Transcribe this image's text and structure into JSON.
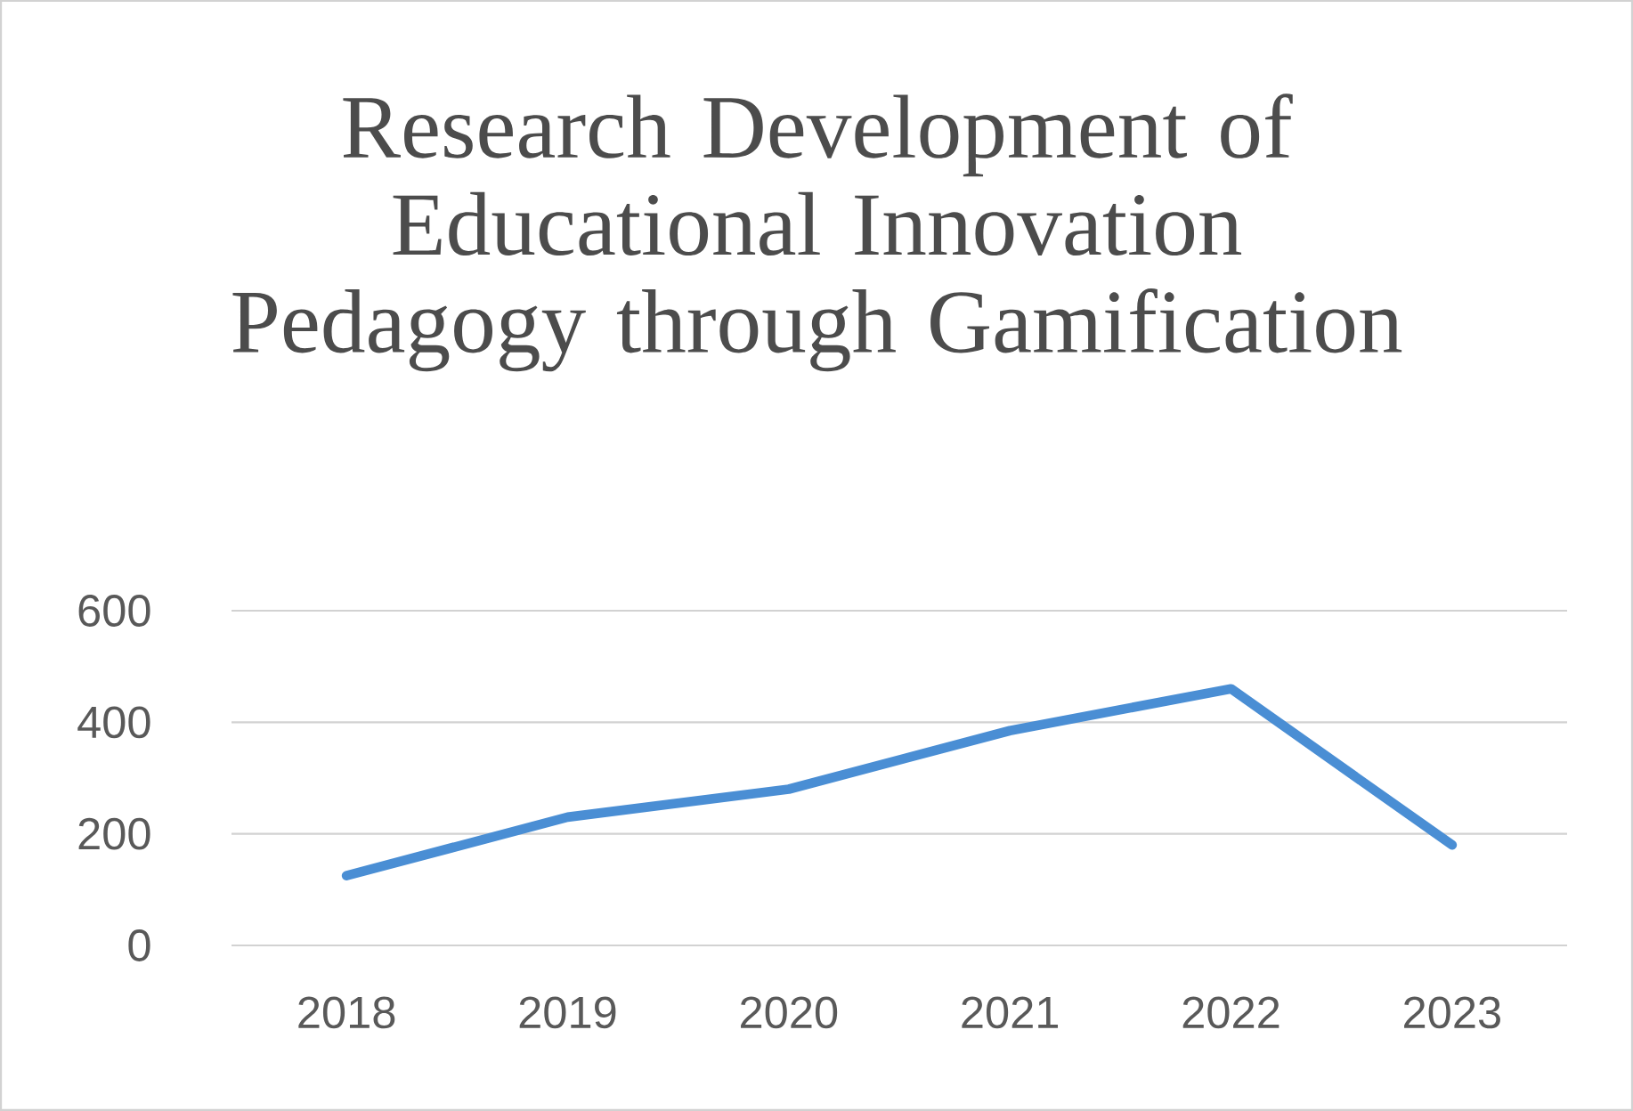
{
  "chart_data": {
    "type": "line",
    "title": "Research Development of Educational Innovation Pedagogy through Gamification",
    "categories": [
      "2018",
      "2019",
      "2020",
      "2021",
      "2022",
      "2023"
    ],
    "values": [
      125,
      230,
      280,
      385,
      460,
      180
    ],
    "color": "#4a8ed4",
    "marker": "none",
    "ylim": [
      0,
      600
    ],
    "yticks": [
      0,
      200,
      400,
      600
    ],
    "grid": "y"
  }
}
